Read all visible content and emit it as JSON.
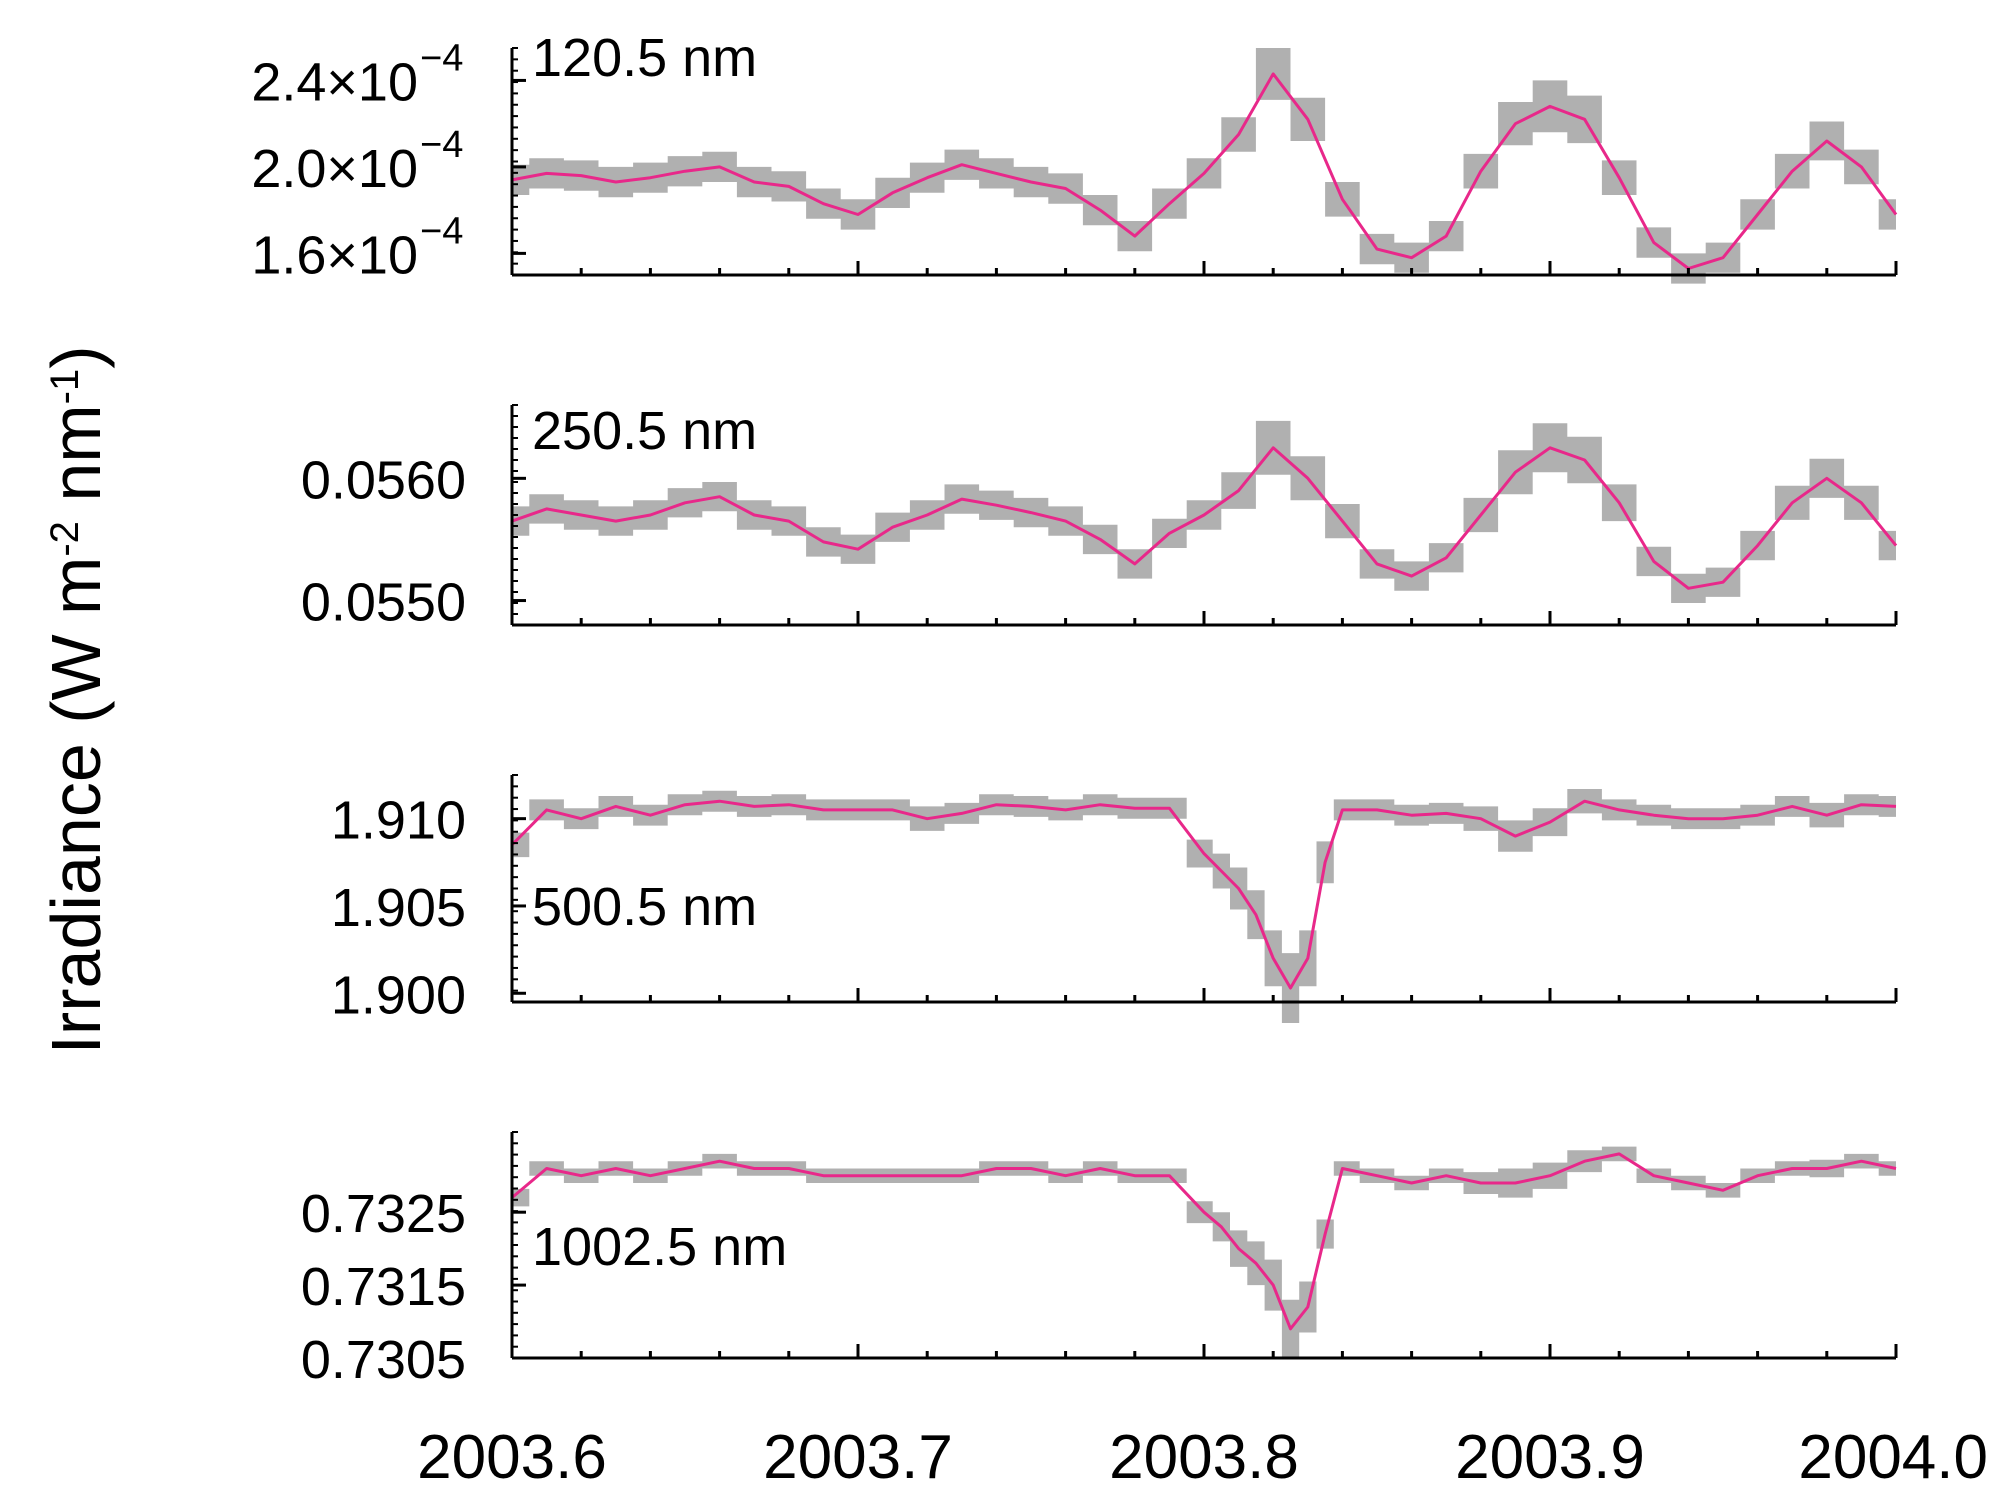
{
  "figure": {
    "ylabel": "Irradiance (W m-2 nm-1)",
    "ylabel_parts": {
      "a": "Irradiance (W m",
      "b": "-2",
      "c": " nm",
      "d": "-1",
      "e": ")"
    },
    "x_tick_labels": [
      "2003.6",
      "2003.7",
      "2003.8",
      "2003.9",
      "2004.0"
    ]
  },
  "chart_data": [
    {
      "type": "line",
      "label": "120.5 nm",
      "xlim": [
        2003.6,
        2004.0
      ],
      "ylim": [
        0.00015,
        0.000255
      ],
      "yticks": [
        {
          "label": "2.4×10",
          "exp": "−4",
          "value": 0.00024
        },
        {
          "label": "2.0×10",
          "exp": "−4",
          "value": 0.0002
        },
        {
          "label": "1.6×10",
          "exp": "−4",
          "value": 0.00016
        }
      ],
      "line_color": "#e8288a",
      "band_color": "#b0b0b0",
      "x": [
        2003.6,
        2003.61,
        2003.62,
        2003.63,
        2003.64,
        2003.65,
        2003.66,
        2003.67,
        2003.68,
        2003.69,
        2003.7,
        2003.71,
        2003.72,
        2003.73,
        2003.74,
        2003.75,
        2003.76,
        2003.77,
        2003.78,
        2003.79,
        2003.8,
        2003.81,
        2003.82,
        2003.83,
        2003.84,
        2003.85,
        2003.86,
        2003.87,
        2003.88,
        2003.89,
        2003.9,
        2003.91,
        2003.92,
        2003.93,
        2003.94,
        2003.95,
        2003.96,
        2003.97,
        2003.98,
        2003.99,
        2004.0
      ],
      "y": [
        0.000194,
        0.000197,
        0.000196,
        0.000193,
        0.000195,
        0.000198,
        0.0002,
        0.000193,
        0.000191,
        0.000183,
        0.000178,
        0.000188,
        0.000195,
        0.000201,
        0.000197,
        0.000193,
        0.00019,
        0.00018,
        0.000168,
        0.000183,
        0.000197,
        0.000215,
        0.000243,
        0.000222,
        0.000185,
        0.000162,
        0.000158,
        0.000168,
        0.000198,
        0.00022,
        0.000228,
        0.000222,
        0.000195,
        0.000165,
        0.000153,
        0.000158,
        0.000178,
        0.000198,
        0.000212,
        0.0002,
        0.000178
      ],
      "err": [
        7e-06,
        7e-06,
        7e-06,
        7e-06,
        7e-06,
        7e-06,
        7e-06,
        7e-06,
        7e-06,
        7e-06,
        7e-06,
        7e-06,
        7e-06,
        7e-06,
        7e-06,
        7e-06,
        7e-06,
        7e-06,
        7e-06,
        7e-06,
        7e-06,
        8e-06,
        1.2e-05,
        1e-05,
        8e-06,
        7e-06,
        7e-06,
        7e-06,
        8e-06,
        1e-05,
        1.2e-05,
        1.1e-05,
        8e-06,
        7e-06,
        7e-06,
        7e-06,
        7e-06,
        8e-06,
        9e-06,
        8e-06,
        7e-06
      ]
    },
    {
      "type": "line",
      "label": "250.5 nm",
      "xlim": [
        2003.6,
        2004.0
      ],
      "ylim": [
        0.0548,
        0.0566
      ],
      "yticks": [
        {
          "label": "0.0560",
          "value": 0.056
        },
        {
          "label": "0.0550",
          "value": 0.055
        }
      ],
      "line_color": "#e8288a",
      "band_color": "#b0b0b0",
      "x": [
        2003.6,
        2003.61,
        2003.62,
        2003.63,
        2003.64,
        2003.65,
        2003.66,
        2003.67,
        2003.68,
        2003.69,
        2003.7,
        2003.71,
        2003.72,
        2003.73,
        2003.74,
        2003.75,
        2003.76,
        2003.77,
        2003.78,
        2003.79,
        2003.8,
        2003.81,
        2003.82,
        2003.83,
        2003.84,
        2003.85,
        2003.86,
        2003.87,
        2003.88,
        2003.89,
        2003.9,
        2003.91,
        2003.92,
        2003.93,
        2003.94,
        2003.95,
        2003.96,
        2003.97,
        2003.98,
        2003.99,
        2004.0
      ],
      "y": [
        0.05565,
        0.05575,
        0.0557,
        0.05565,
        0.0557,
        0.0558,
        0.05585,
        0.0557,
        0.05565,
        0.05548,
        0.05542,
        0.0556,
        0.0557,
        0.05583,
        0.05578,
        0.05572,
        0.05565,
        0.0555,
        0.0553,
        0.05555,
        0.0557,
        0.0559,
        0.05625,
        0.056,
        0.05565,
        0.0553,
        0.0552,
        0.05535,
        0.0557,
        0.05605,
        0.05625,
        0.05615,
        0.0558,
        0.05532,
        0.0551,
        0.05515,
        0.05545,
        0.0558,
        0.056,
        0.0558,
        0.05545
      ],
      "err": [
        0.00012,
        0.00012,
        0.00012,
        0.00012,
        0.00012,
        0.00012,
        0.00012,
        0.00012,
        0.00012,
        0.00012,
        0.00012,
        0.00012,
        0.00012,
        0.00012,
        0.00012,
        0.00012,
        0.00012,
        0.00012,
        0.00012,
        0.00012,
        0.00012,
        0.00015,
        0.00022,
        0.00018,
        0.00014,
        0.00012,
        0.00012,
        0.00012,
        0.00014,
        0.00018,
        0.0002,
        0.00019,
        0.00015,
        0.00012,
        0.00012,
        0.00012,
        0.00012,
        0.00014,
        0.00016,
        0.00014,
        0.00012
      ]
    },
    {
      "type": "line",
      "label": "500.5 nm",
      "xlim": [
        2003.6,
        2004.0
      ],
      "ylim": [
        1.8995,
        1.9125
      ],
      "yticks": [
        {
          "label": "1.910",
          "value": 1.91
        },
        {
          "label": "1.905",
          "value": 1.905
        },
        {
          "label": "1.900",
          "value": 1.9
        }
      ],
      "line_color": "#e8288a",
      "band_color": "#b0b0b0",
      "x": [
        2003.6,
        2003.61,
        2003.62,
        2003.63,
        2003.64,
        2003.65,
        2003.66,
        2003.67,
        2003.68,
        2003.69,
        2003.7,
        2003.71,
        2003.72,
        2003.73,
        2003.74,
        2003.75,
        2003.76,
        2003.77,
        2003.78,
        2003.79,
        2003.8,
        2003.805,
        2003.81,
        2003.815,
        2003.82,
        2003.825,
        2003.83,
        2003.835,
        2003.84,
        2003.85,
        2003.86,
        2003.87,
        2003.88,
        2003.89,
        2003.9,
        2003.91,
        2003.92,
        2003.93,
        2003.94,
        2003.95,
        2003.96,
        2003.97,
        2003.98,
        2003.99,
        2004.0
      ],
      "y": [
        1.9085,
        1.9105,
        1.91,
        1.9107,
        1.9102,
        1.9108,
        1.911,
        1.9107,
        1.9108,
        1.9105,
        1.9105,
        1.9105,
        1.91,
        1.9103,
        1.9108,
        1.9107,
        1.9105,
        1.9108,
        1.9106,
        1.9106,
        1.908,
        1.907,
        1.906,
        1.9045,
        1.902,
        1.9003,
        1.902,
        1.9075,
        1.9105,
        1.9105,
        1.9102,
        1.9103,
        1.91,
        1.909,
        1.9098,
        1.911,
        1.9105,
        1.9102,
        1.91,
        1.91,
        1.9102,
        1.9107,
        1.9102,
        1.9108,
        1.9107
      ],
      "err": [
        0.0007,
        0.0006,
        0.0006,
        0.0006,
        0.0006,
        0.0006,
        0.0006,
        0.0006,
        0.0006,
        0.0006,
        0.0006,
        0.0006,
        0.0007,
        0.0006,
        0.0006,
        0.0006,
        0.0006,
        0.0006,
        0.0006,
        0.0006,
        0.0008,
        0.001,
        0.0012,
        0.0014,
        0.0016,
        0.002,
        0.0016,
        0.0012,
        0.0006,
        0.0006,
        0.0006,
        0.0006,
        0.0007,
        0.0009,
        0.0008,
        0.0007,
        0.0006,
        0.0006,
        0.0006,
        0.0006,
        0.0006,
        0.0006,
        0.0007,
        0.0006,
        0.0006
      ]
    },
    {
      "type": "line",
      "label": "1002.5 nm",
      "xlim": [
        2003.6,
        2004.0
      ],
      "ylim": [
        0.7305,
        0.7336
      ],
      "yticks": [
        {
          "label": "0.7325",
          "value": 0.7325
        },
        {
          "label": "0.7315",
          "value": 0.7315
        },
        {
          "label": "0.7305",
          "value": 0.7305
        }
      ],
      "line_color": "#e8288a",
      "band_color": "#b0b0b0",
      "x": [
        2003.6,
        2003.61,
        2003.62,
        2003.63,
        2003.64,
        2003.65,
        2003.66,
        2003.67,
        2003.68,
        2003.69,
        2003.7,
        2003.71,
        2003.72,
        2003.73,
        2003.74,
        2003.75,
        2003.76,
        2003.77,
        2003.78,
        2003.79,
        2003.8,
        2003.805,
        2003.81,
        2003.815,
        2003.82,
        2003.825,
        2003.83,
        2003.835,
        2003.84,
        2003.85,
        2003.86,
        2003.87,
        2003.88,
        2003.89,
        2003.9,
        2003.91,
        2003.92,
        2003.93,
        2003.94,
        2003.95,
        2003.96,
        2003.97,
        2003.98,
        2003.99,
        2004.0
      ],
      "y": [
        0.7327,
        0.7331,
        0.733,
        0.7331,
        0.733,
        0.7331,
        0.7332,
        0.7331,
        0.7331,
        0.733,
        0.733,
        0.733,
        0.733,
        0.733,
        0.7331,
        0.7331,
        0.733,
        0.7331,
        0.733,
        0.733,
        0.7325,
        0.7323,
        0.732,
        0.7318,
        0.7315,
        0.7309,
        0.7312,
        0.7322,
        0.7331,
        0.733,
        0.7329,
        0.733,
        0.7329,
        0.7329,
        0.733,
        0.7332,
        0.7333,
        0.733,
        0.7329,
        0.7328,
        0.733,
        0.7331,
        0.7331,
        0.7332,
        0.7331
      ],
      "err": [
        0.00012,
        0.0001,
        0.0001,
        0.0001,
        0.0001,
        0.0001,
        0.0001,
        0.0001,
        0.0001,
        0.0001,
        0.0001,
        0.0001,
        0.0001,
        0.0001,
        0.0001,
        0.0001,
        0.0001,
        0.0001,
        0.0001,
        0.0001,
        0.00015,
        0.0002,
        0.00025,
        0.0003,
        0.00035,
        0.0004,
        0.00035,
        0.0002,
        0.0001,
        0.0001,
        0.0001,
        0.0001,
        0.00015,
        0.0002,
        0.00018,
        0.00015,
        0.0001,
        0.0001,
        0.0001,
        0.0001,
        0.0001,
        0.0001,
        0.00012,
        0.0001,
        0.0001
      ]
    }
  ]
}
